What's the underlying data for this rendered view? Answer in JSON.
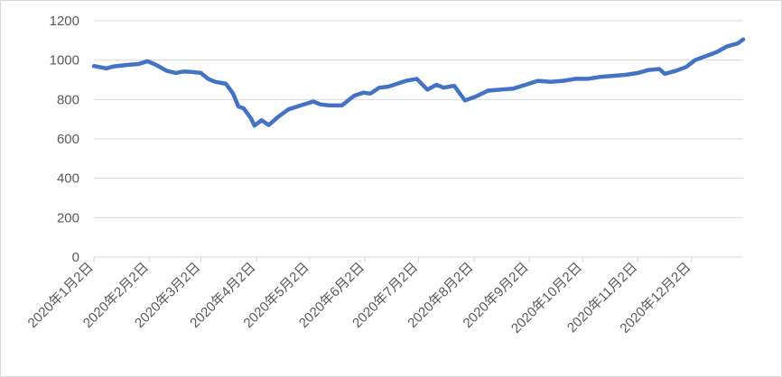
{
  "chart_data": {
    "type": "line",
    "color": "#4472c4",
    "grid": true,
    "x": [
      "2020-01-02",
      "2020-01-09",
      "2020-01-13",
      "2020-01-20",
      "2020-01-27",
      "2020-02-01",
      "2020-02-06",
      "2020-02-12",
      "2020-02-17",
      "2020-02-21",
      "2020-02-26",
      "2020-03-02",
      "2020-03-06",
      "2020-03-10",
      "2020-03-16",
      "2020-03-20",
      "2020-03-23",
      "2020-03-26",
      "2020-03-30",
      "2020-04-01",
      "2020-04-05",
      "2020-04-09",
      "2020-04-14",
      "2020-04-20",
      "2020-04-27",
      "2020-05-04",
      "2020-05-08",
      "2020-05-13",
      "2020-05-20",
      "2020-05-27",
      "2020-06-01",
      "2020-06-05",
      "2020-06-10",
      "2020-06-15",
      "2020-06-20",
      "2020-06-25",
      "2020-07-01",
      "2020-07-07",
      "2020-07-12",
      "2020-07-16",
      "2020-07-22",
      "2020-07-28",
      "2020-08-03",
      "2020-08-10",
      "2020-08-17",
      "2020-08-24",
      "2020-08-31",
      "2020-09-07",
      "2020-09-14",
      "2020-09-21",
      "2020-09-28",
      "2020-10-05",
      "2020-10-12",
      "2020-10-19",
      "2020-10-26",
      "2020-11-02",
      "2020-11-08",
      "2020-11-14",
      "2020-11-17",
      "2020-11-23",
      "2020-11-29",
      "2020-12-04",
      "2020-12-10",
      "2020-12-16",
      "2020-12-22",
      "2020-12-28",
      "2020-12-31"
    ],
    "values": [
      970,
      958,
      968,
      975,
      980,
      995,
      975,
      945,
      935,
      942,
      940,
      935,
      905,
      890,
      880,
      830,
      765,
      755,
      705,
      668,
      695,
      670,
      710,
      750,
      770,
      790,
      775,
      770,
      770,
      820,
      835,
      830,
      860,
      865,
      880,
      895,
      905,
      850,
      875,
      860,
      870,
      795,
      815,
      845,
      850,
      855,
      875,
      895,
      890,
      895,
      905,
      905,
      915,
      920,
      925,
      935,
      950,
      955,
      930,
      945,
      965,
      1000,
      1020,
      1040,
      1070,
      1085,
      1105
    ],
    "xlim": [
      "2020-01-02",
      "2020-12-31"
    ],
    "xticks": [
      {
        "value": "2020-01-02",
        "label": "2020年1月2日"
      },
      {
        "value": "2020-02-02",
        "label": "2020年2月2日"
      },
      {
        "value": "2020-03-02",
        "label": "2020年3月2日"
      },
      {
        "value": "2020-04-02",
        "label": "2020年4月2日"
      },
      {
        "value": "2020-05-02",
        "label": "2020年5月2日"
      },
      {
        "value": "2020-06-02",
        "label": "2020年6月2日"
      },
      {
        "value": "2020-07-02",
        "label": "2020年7月2日"
      },
      {
        "value": "2020-08-02",
        "label": "2020年8月2日"
      },
      {
        "value": "2020-09-02",
        "label": "2020年9月2日"
      },
      {
        "value": "2020-10-02",
        "label": "2020年10月2日"
      },
      {
        "value": "2020-11-02",
        "label": "2020年11月2日"
      },
      {
        "value": "2020-12-02",
        "label": "2020年12月2日"
      }
    ],
    "ylim": [
      0,
      1200
    ],
    "yticks": [
      0,
      200,
      400,
      600,
      800,
      1000,
      1200
    ]
  }
}
